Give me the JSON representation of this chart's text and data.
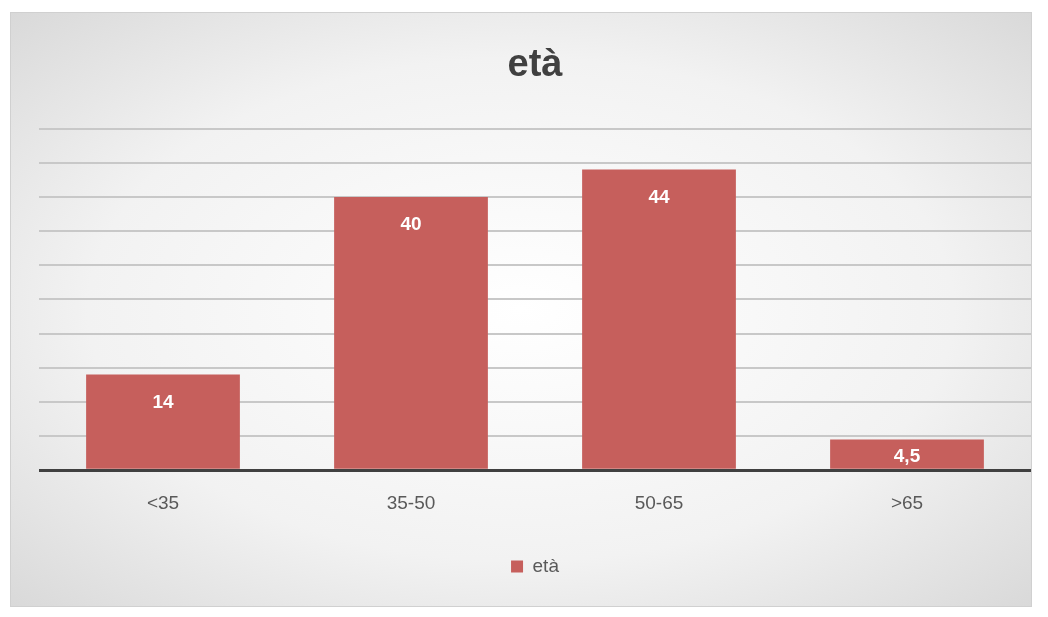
{
  "chart_data": {
    "type": "bar",
    "title": "età",
    "categories": [
      "<35",
      "35-50",
      "50-65",
      ">65"
    ],
    "series": [
      {
        "name": "età",
        "color": "#c65f5c",
        "values": [
          14,
          40,
          44,
          4.5
        ],
        "value_labels": [
          "14",
          "40",
          "44",
          "4,5"
        ]
      }
    ],
    "ylim": [
      0,
      50
    ],
    "grid": "y",
    "tick_labels": "x",
    "legend": "bottom"
  }
}
